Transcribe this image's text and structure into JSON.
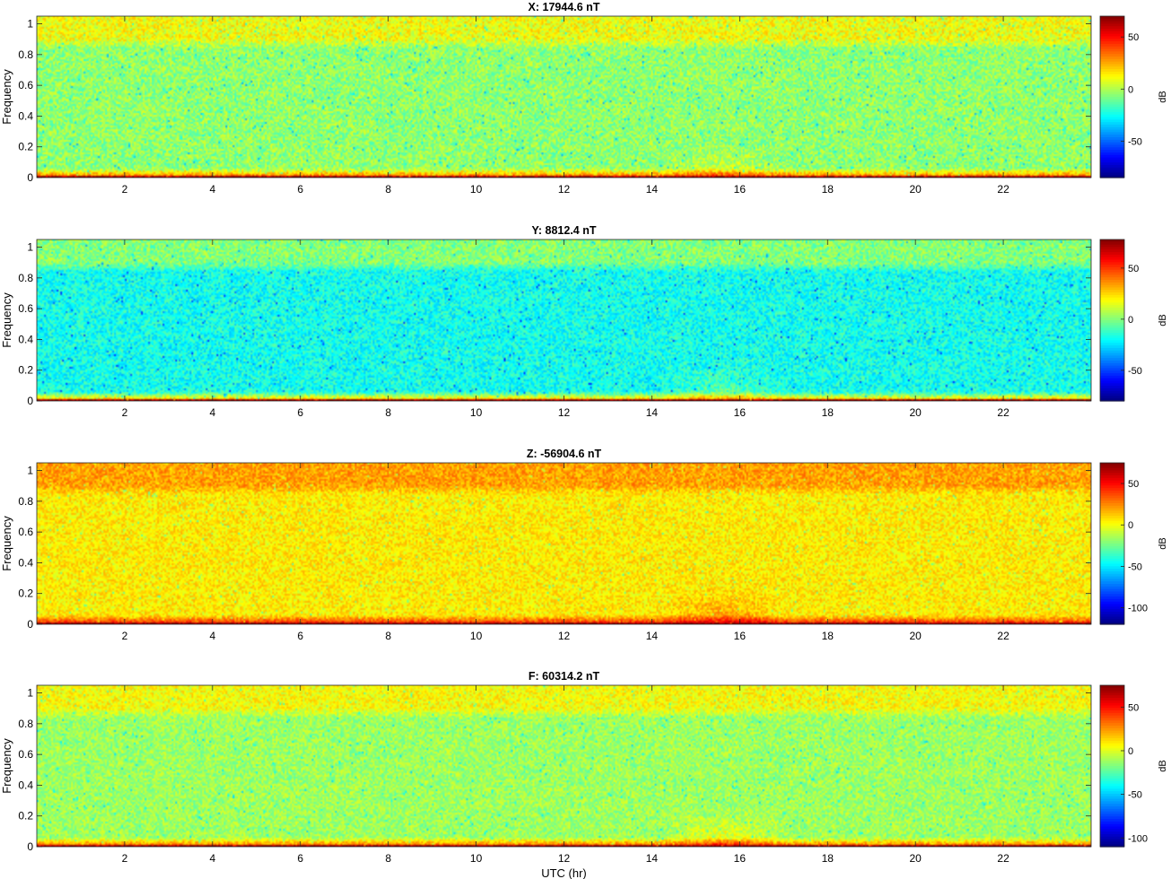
{
  "figure": {
    "xlabel": "UTC (hr)",
    "ylabel": "Frequency",
    "colorbar_label": "dB"
  },
  "chart_data": [
    {
      "type": "heatmap",
      "title": "X: 17944.6 nT",
      "xlabel": "",
      "ylabel": "Frequency",
      "xlim": [
        0,
        24
      ],
      "ylim": [
        0,
        1.05
      ],
      "xticks": [
        2,
        4,
        6,
        8,
        10,
        12,
        14,
        16,
        18,
        20,
        22
      ],
      "yticks": [
        0,
        0.2,
        0.4,
        0.6,
        0.8,
        1
      ],
      "ytick_labels": [
        "0",
        "0.2",
        "0.4",
        "0.6",
        "0.8",
        "1"
      ],
      "colorbar": {
        "label": "dB",
        "range": [
          -85,
          70
        ],
        "ticks": [
          -50,
          0,
          50
        ]
      },
      "colormap": "jet",
      "background_level_db": -5,
      "top_band_level_db": 10,
      "low_freq_level_db": 40,
      "event_level_db": 5,
      "event_window_hr": [
        14.2,
        17.0
      ]
    },
    {
      "type": "heatmap",
      "title": "Y: 8812.4 nT",
      "xlabel": "",
      "ylabel": "Frequency",
      "xlim": [
        0,
        24
      ],
      "ylim": [
        0,
        1.05
      ],
      "xticks": [
        2,
        4,
        6,
        8,
        10,
        12,
        14,
        16,
        18,
        20,
        22
      ],
      "yticks": [
        0,
        0.2,
        0.4,
        0.6,
        0.8,
        1
      ],
      "ytick_labels": [
        "0",
        "0.2",
        "0.4",
        "0.6",
        "0.8",
        "1"
      ],
      "colorbar": {
        "label": "dB",
        "range": [
          -80,
          78
        ],
        "ticks": [
          -50,
          0,
          50
        ]
      },
      "colormap": "jet",
      "background_level_db": -18,
      "top_band_level_db": 0,
      "low_freq_level_db": 35,
      "event_level_db": -5,
      "event_window_hr": [
        14.2,
        17.0
      ]
    },
    {
      "type": "heatmap",
      "title": "Z: -56904.6 nT",
      "xlabel": "",
      "ylabel": "Frequency",
      "xlim": [
        0,
        24
      ],
      "ylim": [
        0,
        1.05
      ],
      "xticks": [
        2,
        4,
        6,
        8,
        10,
        12,
        14,
        16,
        18,
        20,
        22
      ],
      "yticks": [
        0,
        0.2,
        0.4,
        0.6,
        0.8,
        1
      ],
      "ytick_labels": [
        "0",
        "0.2",
        "0.4",
        "0.6",
        "0.8",
        "1"
      ],
      "colorbar": {
        "label": "dB",
        "range": [
          -120,
          75
        ],
        "ticks": [
          -100,
          -50,
          0,
          50
        ]
      },
      "colormap": "jet",
      "background_level_db": 5,
      "top_band_level_db": 20,
      "low_freq_level_db": 50,
      "event_level_db": 22,
      "event_window_hr": [
        14.2,
        17.0
      ]
    },
    {
      "type": "heatmap",
      "title": "F: 60314.2 nT",
      "xlabel": "UTC (hr)",
      "ylabel": "Frequency",
      "xlim": [
        0,
        24
      ],
      "ylim": [
        0,
        1.05
      ],
      "xticks": [
        2,
        4,
        6,
        8,
        10,
        12,
        14,
        16,
        18,
        20,
        22
      ],
      "yticks": [
        0,
        0.2,
        0.4,
        0.6,
        0.8,
        1
      ],
      "ytick_labels": [
        "0",
        "0.2",
        "0.4",
        "0.6",
        "0.8",
        "1"
      ],
      "colorbar": {
        "label": "dB",
        "range": [
          -110,
          75
        ],
        "ticks": [
          -100,
          -50,
          0,
          50
        ]
      },
      "colormap": "jet",
      "background_level_db": -12,
      "top_band_level_db": 5,
      "low_freq_level_db": 40,
      "event_level_db": 5,
      "event_window_hr": [
        14.2,
        17.0
      ]
    }
  ]
}
